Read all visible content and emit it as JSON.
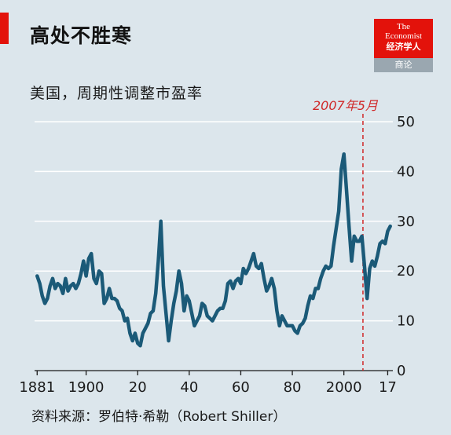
{
  "header": {
    "title": "高处不胜寒",
    "logo": {
      "line1": "The",
      "line2": "Economist",
      "line3": "经济学人",
      "bottom": "商论"
    }
  },
  "subtitle": "美国，周期性调整市盈率",
  "annotation": {
    "label": "2007年5月",
    "year": 2007.4,
    "color": "#d02828"
  },
  "source": "资料来源：罗伯特·希勒（Robert Shiller）",
  "colors": {
    "line": "#1b5a78",
    "background": "#dce6ec",
    "grid": "#ffffff",
    "brand": "#e3120b"
  },
  "chart_data": {
    "type": "line",
    "ylim": [
      0,
      50
    ],
    "y_ticks": [
      0,
      10,
      20,
      30,
      40,
      50
    ],
    "y_tick_labels": [
      "0",
      "10",
      "20",
      "30",
      "40",
      "50"
    ],
    "y_axis_side": "right",
    "grid": true,
    "xlim": [
      1880,
      2019
    ],
    "x_ticks": [
      1881,
      1900,
      1920,
      1940,
      1960,
      1980,
      2000,
      2017
    ],
    "x_tick_labels": [
      "1881",
      "1900",
      "20",
      "40",
      "60",
      "80",
      "2000",
      "17"
    ],
    "series": [
      {
        "x": [
          1881,
          1882,
          1883,
          1884,
          1885,
          1886,
          1887,
          1888,
          1889,
          1890,
          1891,
          1892,
          1893,
          1894,
          1895,
          1896,
          1897,
          1898,
          1899,
          1900,
          1901,
          1902,
          1903,
          1904,
          1905,
          1906,
          1907,
          1908,
          1909,
          1910,
          1911,
          1912,
          1913,
          1914,
          1915,
          1916,
          1917,
          1918,
          1919,
          1920,
          1921,
          1922,
          1923,
          1924,
          1925,
          1926,
          1927,
          1928,
          1929,
          1930,
          1931,
          1932,
          1933,
          1934,
          1935,
          1936,
          1937,
          1938,
          1939,
          1940,
          1941,
          1942,
          1943,
          1944,
          1945,
          1946,
          1947,
          1948,
          1949,
          1950,
          1951,
          1952,
          1953,
          1954,
          1955,
          1956,
          1957,
          1958,
          1959,
          1960,
          1961,
          1962,
          1963,
          1964,
          1965,
          1966,
          1967,
          1968,
          1969,
          1970,
          1971,
          1972,
          1973,
          1974,
          1975,
          1976,
          1977,
          1978,
          1979,
          1980,
          1981,
          1982,
          1983,
          1984,
          1985,
          1986,
          1987,
          1988,
          1989,
          1990,
          1991,
          1992,
          1993,
          1994,
          1995,
          1996,
          1997,
          1998,
          1999,
          2000,
          2001,
          2002,
          2003,
          2004,
          2005,
          2006,
          2007,
          2008,
          2009,
          2010,
          2011,
          2012,
          2013,
          2014,
          2015,
          2016,
          2017,
          2018
        ],
        "values": [
          19.0,
          17.5,
          15.0,
          13.5,
          14.5,
          17.0,
          18.5,
          16.5,
          17.5,
          17.0,
          15.5,
          18.5,
          16.0,
          17.0,
          17.5,
          16.5,
          17.5,
          19.5,
          22.0,
          19.0,
          22.5,
          23.5,
          18.5,
          17.5,
          20.0,
          19.5,
          13.5,
          14.5,
          16.5,
          14.5,
          14.5,
          14.0,
          12.5,
          12.0,
          10.0,
          10.5,
          7.5,
          6.0,
          7.5,
          5.5,
          5.0,
          7.5,
          8.5,
          9.5,
          11.5,
          12.0,
          15.5,
          22.0,
          30.0,
          17.0,
          11.5,
          6.0,
          10.0,
          13.5,
          16.0,
          20.0,
          17.5,
          12.0,
          15.0,
          14.0,
          11.5,
          9.0,
          10.0,
          11.0,
          13.5,
          13.0,
          11.0,
          10.5,
          10.0,
          11.0,
          12.0,
          12.5,
          12.5,
          14.0,
          17.5,
          18.0,
          16.5,
          18.0,
          18.5,
          17.5,
          20.5,
          19.5,
          20.5,
          22.0,
          23.5,
          21.0,
          20.5,
          21.5,
          18.5,
          16.0,
          17.0,
          18.5,
          16.5,
          12.0,
          9.0,
          11.0,
          10.0,
          9.0,
          9.0,
          9.0,
          8.0,
          7.5,
          9.0,
          9.5,
          10.5,
          13.0,
          15.0,
          14.5,
          16.5,
          16.5,
          18.5,
          20.0,
          21.0,
          20.5,
          21.0,
          25.0,
          28.5,
          32.0,
          40.5,
          43.5,
          36.5,
          29.0,
          22.0,
          27.0,
          26.0,
          26.0,
          27.0,
          21.0,
          14.5,
          20.5,
          22.0,
          21.0,
          23.0,
          25.5,
          26.0,
          25.5,
          28.0,
          29.0
        ]
      }
    ]
  }
}
